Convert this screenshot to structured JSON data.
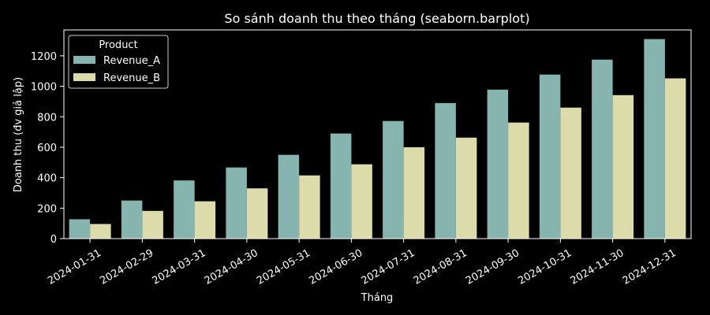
{
  "chart_data": {
    "type": "bar",
    "title": "So sánh doanh thu theo tháng (seaborn.barplot)",
    "xlabel": "Tháng",
    "ylabel": "Doanh thu (đv giả lập)",
    "ylim": [
      0,
      1370
    ],
    "yticks": [
      0,
      200,
      400,
      600,
      800,
      1000,
      1200
    ],
    "grid": false,
    "legend": {
      "title": "Product",
      "placement": "top-left"
    },
    "categories": [
      "2024-01-31",
      "2024-02-29",
      "2024-03-31",
      "2024-04-30",
      "2024-05-31",
      "2024-06-30",
      "2024-07-31",
      "2024-08-31",
      "2024-09-30",
      "2024-10-31",
      "2024-11-30",
      "2024-12-31"
    ],
    "series": [
      {
        "name": "Revenue_A",
        "color": "#86b4ae",
        "values": [
          127,
          250,
          382,
          467,
          550,
          690,
          772,
          890,
          978,
          1077,
          1175,
          1310
        ]
      },
      {
        "name": "Revenue_B",
        "color": "#dcdcaa",
        "values": [
          96,
          182,
          245,
          330,
          415,
          488,
          600,
          663,
          762,
          860,
          942,
          1052
        ]
      }
    ]
  }
}
